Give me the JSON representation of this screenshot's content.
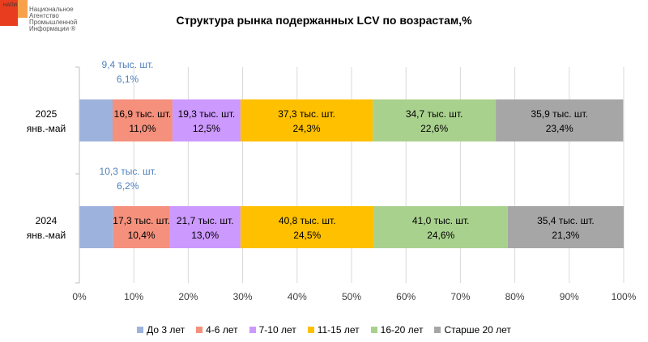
{
  "logo": {
    "abbr": "НАПИ",
    "lines": [
      "Национальное",
      "Агентство",
      "Промышленной",
      "Информации ®"
    ],
    "colors": [
      "#e83e1f",
      "#f7a24a"
    ]
  },
  "chart_data": {
    "type": "bar",
    "orientation": "horizontal",
    "stacked": "percent",
    "title": "Структура рынка подержанных LCV по возрастам,%",
    "categories": [
      [
        "2025",
        "янв.-май"
      ],
      [
        "2024",
        "янв.-май"
      ]
    ],
    "series": [
      {
        "name": "До 3 лет",
        "color": "#9db3dd",
        "values": [
          6.1,
          6.2
        ],
        "labels": [
          [
            "9,4 тыс. шт.",
            "6,1%"
          ],
          [
            "10,3 тыс. шт.",
            "6,2%"
          ]
        ],
        "label_color": "#4f81bd",
        "label_above": true
      },
      {
        "name": "4-6 лет",
        "color": "#f4907c",
        "values": [
          11.0,
          10.4
        ],
        "labels": [
          [
            "16,9 тыс. шт.",
            "11,0%"
          ],
          [
            "17,3 тыс. шт.",
            "10,4%"
          ]
        ]
      },
      {
        "name": "7-10 лет",
        "color": "#cc99ff",
        "values": [
          12.5,
          13.0
        ],
        "labels": [
          [
            "19,3 тыс. шт.",
            "12,5%"
          ],
          [
            "21,7 тыс. шт.",
            "13,0%"
          ]
        ]
      },
      {
        "name": "11-15 лет",
        "color": "#ffc000",
        "values": [
          24.3,
          24.5
        ],
        "labels": [
          [
            "37,3 тыс. шт.",
            "24,3%"
          ],
          [
            "40,8 тыс. шт.",
            "24,5%"
          ]
        ]
      },
      {
        "name": "16-20 лет",
        "color": "#a9d18e",
        "values": [
          22.6,
          24.6
        ],
        "labels": [
          [
            "34,7 тыс. шт.",
            "22,6%"
          ],
          [
            "41,0 тыс. шт.",
            "24,6%"
          ]
        ]
      },
      {
        "name": "Старше 20 лет",
        "color": "#a6a6a6",
        "values": [
          23.4,
          21.3
        ],
        "labels": [
          [
            "35,9 тыс. шт.",
            "23,4%"
          ],
          [
            "35,4 тыс. шт.",
            "21,3%"
          ]
        ]
      }
    ],
    "x_ticks": [
      "0%",
      "10%",
      "20%",
      "30%",
      "40%",
      "50%",
      "60%",
      "70%",
      "80%",
      "90%",
      "100%"
    ],
    "xlim": [
      0,
      100
    ],
    "grid": true,
    "legend_position": "bottom"
  }
}
